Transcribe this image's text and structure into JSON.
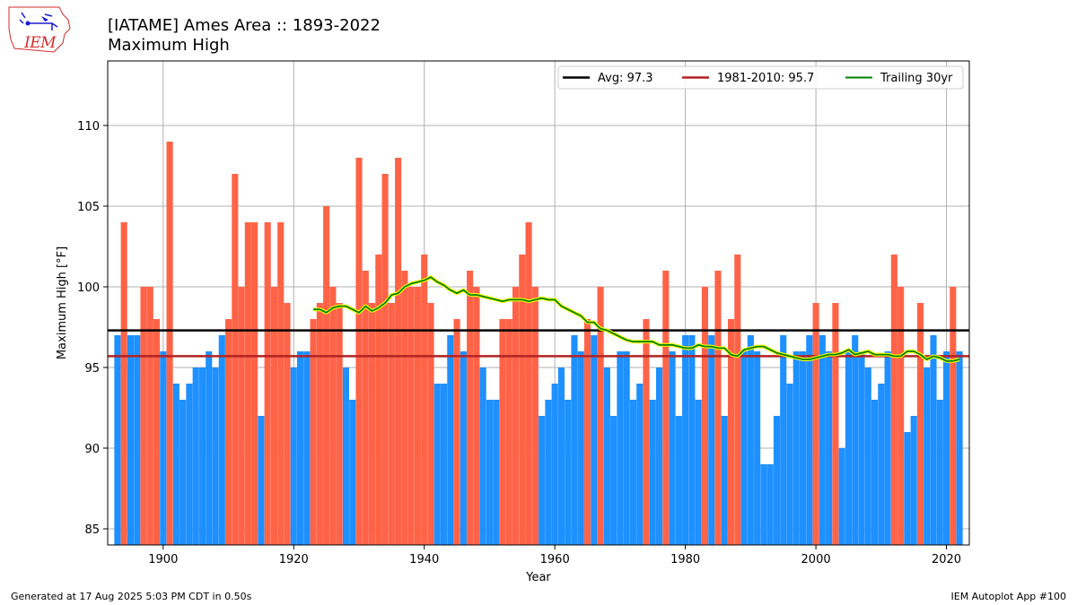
{
  "titles": {
    "line1": "[IATAME] Ames Area :: 1893-2022",
    "line2": "Maximum High"
  },
  "footer": {
    "left": "Generated at 17 Aug 2025 5:03 PM CDT in 0.50s",
    "right": "IEM Autoplot App #100"
  },
  "logo": {
    "text": "IEM"
  },
  "chart_data": {
    "type": "bar",
    "xlabel": "Year",
    "ylabel": "Maximum High [°F]",
    "xlim": [
      1891.5,
      2023.5
    ],
    "ylim": [
      84,
      114
    ],
    "xticks": [
      1900,
      1920,
      1940,
      1960,
      1980,
      2000,
      2020
    ],
    "yticks": [
      85,
      90,
      95,
      100,
      105,
      110
    ],
    "grid": true,
    "legend_position": "top-right",
    "years": [
      1893,
      1894,
      1895,
      1896,
      1897,
      1898,
      1899,
      1900,
      1901,
      1902,
      1903,
      1904,
      1905,
      1906,
      1907,
      1908,
      1909,
      1910,
      1911,
      1912,
      1913,
      1914,
      1915,
      1916,
      1917,
      1918,
      1919,
      1920,
      1921,
      1922,
      1923,
      1924,
      1925,
      1926,
      1927,
      1928,
      1929,
      1930,
      1931,
      1932,
      1933,
      1934,
      1935,
      1936,
      1937,
      1938,
      1939,
      1940,
      1941,
      1942,
      1943,
      1944,
      1945,
      1946,
      1947,
      1948,
      1949,
      1950,
      1951,
      1952,
      1953,
      1954,
      1955,
      1956,
      1957,
      1958,
      1959,
      1960,
      1961,
      1962,
      1963,
      1964,
      1965,
      1966,
      1967,
      1968,
      1969,
      1970,
      1971,
      1972,
      1973,
      1974,
      1975,
      1976,
      1977,
      1978,
      1979,
      1980,
      1981,
      1982,
      1983,
      1984,
      1985,
      1986,
      1987,
      1988,
      1989,
      1990,
      1991,
      1992,
      1993,
      1994,
      1995,
      1996,
      1997,
      1998,
      1999,
      2000,
      2001,
      2002,
      2003,
      2004,
      2005,
      2006,
      2007,
      2008,
      2009,
      2010,
      2011,
      2012,
      2013,
      2014,
      2015,
      2016,
      2017,
      2018,
      2019,
      2020,
      2021,
      2022
    ],
    "values": [
      97,
      104,
      97,
      97,
      100,
      100,
      98,
      96,
      109,
      94,
      93,
      94,
      95,
      95,
      96,
      95,
      97,
      98,
      107,
      100,
      104,
      104,
      92,
      104,
      100,
      104,
      99,
      95,
      96,
      96,
      98,
      99,
      105,
      100,
      99,
      95,
      93,
      108,
      101,
      99,
      102,
      107,
      99,
      108,
      101,
      100,
      100,
      102,
      99,
      94,
      94,
      97,
      98,
      96,
      101,
      100,
      95,
      93,
      93,
      98,
      98,
      100,
      102,
      104,
      100,
      92,
      93,
      94,
      95,
      93,
      97,
      96,
      98,
      97,
      100,
      95,
      92,
      96,
      96,
      93,
      94,
      98,
      93,
      95,
      101,
      96,
      92,
      97,
      97,
      93,
      100,
      97,
      101,
      92,
      98,
      102,
      96,
      97,
      96,
      89,
      89,
      92,
      97,
      94,
      96,
      96,
      97,
      99,
      97,
      96,
      99,
      90,
      96,
      97,
      96,
      95,
      93,
      94,
      96,
      102,
      100,
      91,
      92,
      99,
      95,
      97,
      93,
      96,
      100,
      96
    ],
    "avg_line": {
      "label": "Avg: 97.3",
      "value": 97.3
    },
    "normal_line": {
      "label": "1981-2010: 95.7",
      "value": 95.7
    },
    "trailing": {
      "label": "Trailing 30yr",
      "years": [
        1923,
        1924,
        1925,
        1926,
        1927,
        1928,
        1929,
        1930,
        1931,
        1932,
        1933,
        1934,
        1935,
        1936,
        1937,
        1938,
        1939,
        1940,
        1941,
        1942,
        1943,
        1944,
        1945,
        1946,
        1947,
        1948,
        1949,
        1950,
        1951,
        1952,
        1953,
        1954,
        1955,
        1956,
        1957,
        1958,
        1959,
        1960,
        1961,
        1962,
        1963,
        1964,
        1965,
        1966,
        1967,
        1968,
        1969,
        1970,
        1971,
        1972,
        1973,
        1974,
        1975,
        1976,
        1977,
        1978,
        1979,
        1980,
        1981,
        1982,
        1983,
        1984,
        1985,
        1986,
        1987,
        1988,
        1989,
        1990,
        1991,
        1992,
        1993,
        1994,
        1995,
        1996,
        1997,
        1998,
        1999,
        2000,
        2001,
        2002,
        2003,
        2004,
        2005,
        2006,
        2007,
        2008,
        2009,
        2010,
        2011,
        2012,
        2013,
        2014,
        2015,
        2016,
        2017,
        2018,
        2019,
        2020,
        2021,
        2022
      ],
      "values": [
        98.6,
        98.6,
        98.4,
        98.7,
        98.8,
        98.8,
        98.6,
        98.4,
        98.8,
        98.5,
        98.7,
        99.0,
        99.5,
        99.6,
        100.0,
        100.2,
        100.3,
        100.4,
        100.6,
        100.3,
        100.1,
        99.8,
        99.6,
        99.8,
        99.5,
        99.5,
        99.4,
        99.3,
        99.2,
        99.1,
        99.2,
        99.2,
        99.2,
        99.1,
        99.2,
        99.3,
        99.2,
        99.2,
        98.8,
        98.6,
        98.4,
        98.2,
        97.8,
        97.8,
        97.4,
        97.3,
        97.1,
        96.9,
        96.7,
        96.6,
        96.6,
        96.6,
        96.6,
        96.4,
        96.4,
        96.4,
        96.3,
        96.2,
        96.2,
        96.4,
        96.3,
        96.3,
        96.2,
        96.2,
        95.8,
        95.7,
        96.1,
        96.2,
        96.3,
        96.3,
        96.1,
        95.9,
        95.8,
        95.7,
        95.6,
        95.5,
        95.5,
        95.6,
        95.7,
        95.8,
        95.8,
        95.9,
        96.1,
        95.8,
        95.9,
        96.0,
        95.8,
        95.8,
        95.8,
        95.7,
        95.7,
        96.0,
        96.0,
        95.8,
        95.5,
        95.7,
        95.6,
        95.4,
        95.4,
        95.5
      ]
    },
    "colors": {
      "above": "#ff6347",
      "below": "#1e90ff",
      "avg": "#000000",
      "normal": "#b22222",
      "trailing": "#008000",
      "trailing_halo": "#ffff00",
      "grid": "#b0b0b0"
    }
  }
}
